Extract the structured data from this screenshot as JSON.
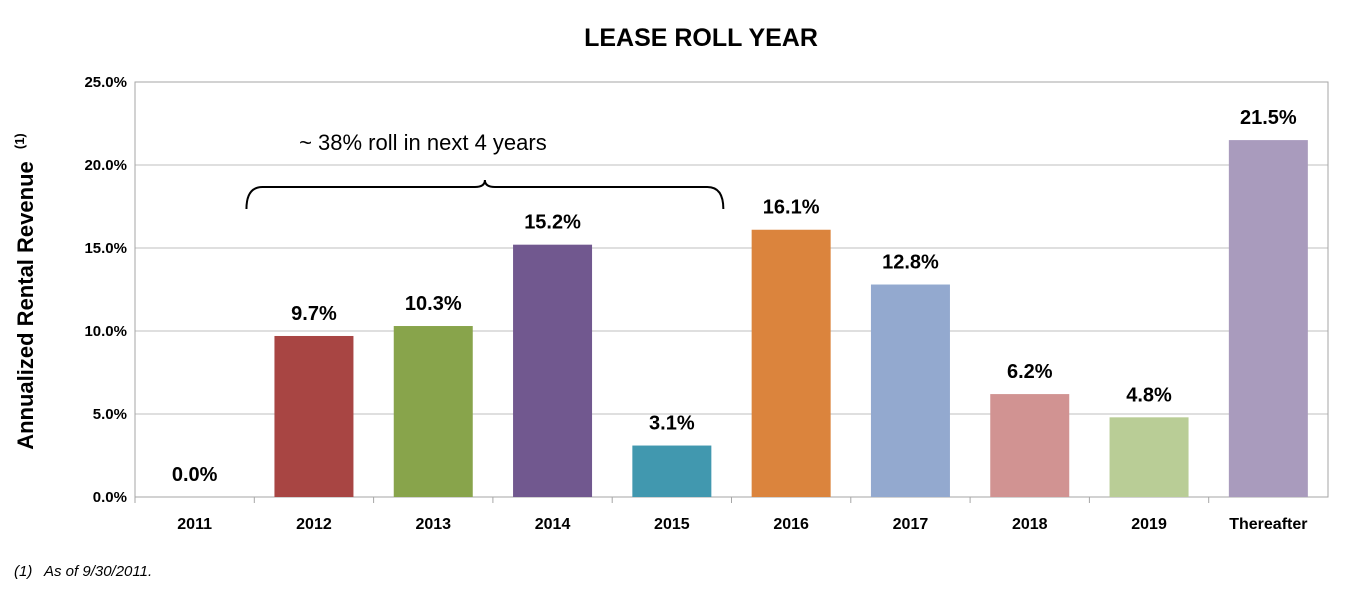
{
  "chart_data": {
    "type": "bar",
    "title": "LEASE ROLL YEAR",
    "xlabel": "",
    "ylabel": "Annualized Rental Revenue",
    "ylabel_superscript": "(1)",
    "categories": [
      "2011",
      "2012",
      "2013",
      "2014",
      "2015",
      "2016",
      "2017",
      "2018",
      "2019",
      "Thereafter"
    ],
    "values": [
      0.0,
      9.7,
      10.3,
      15.2,
      3.1,
      16.1,
      12.8,
      6.2,
      4.8,
      21.5
    ],
    "value_labels": [
      "0.0%",
      "9.7%",
      "10.3%",
      "15.2%",
      "3.1%",
      "16.1%",
      "12.8%",
      "6.2%",
      "4.8%",
      "21.5%"
    ],
    "colors": [
      "#4f81bd",
      "#a84543",
      "#88a44b",
      "#71588f",
      "#4198af",
      "#db843d",
      "#93a9cf",
      "#d19392",
      "#b9cd96",
      "#a99bbd"
    ],
    "ylim": [
      0,
      25
    ],
    "yticks": [
      0,
      5,
      10,
      15,
      20,
      25
    ],
    "ytick_labels": [
      "0.0%",
      "5.0%",
      "10.0%",
      "15.0%",
      "20.0%",
      "25.0%"
    ],
    "grid": true,
    "annotation": {
      "text": "~ 38% roll in next 4 years",
      "brace_from": "2012",
      "brace_to": "2015"
    }
  },
  "footnote": {
    "marker": "(1)",
    "text": "As of 9/30/2011."
  }
}
